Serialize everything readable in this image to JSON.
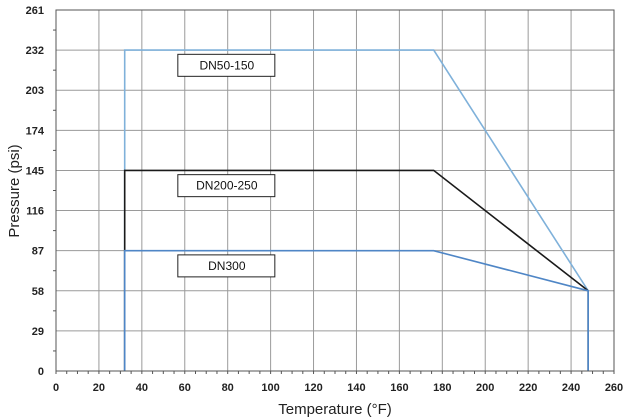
{
  "chart_data": {
    "type": "line",
    "xlabel": "Temperature (°F)",
    "ylabel": "Pressure (psi)",
    "xlim": [
      0,
      260
    ],
    "ylim": [
      0,
      261
    ],
    "x_ticks": [
      0,
      20,
      40,
      60,
      80,
      100,
      120,
      140,
      160,
      180,
      200,
      220,
      240,
      260
    ],
    "y_ticks": [
      0,
      29,
      58,
      87,
      116,
      145,
      174,
      203,
      232,
      261
    ],
    "grid": true,
    "series": [
      {
        "name": "DN50-150",
        "color": "#7fb1da",
        "points": [
          [
            32,
            0
          ],
          [
            32,
            232
          ],
          [
            176,
            232
          ],
          [
            248,
            58
          ],
          [
            248,
            0
          ]
        ]
      },
      {
        "name": "DN200-250",
        "color": "#1a1a1a",
        "points": [
          [
            32,
            0
          ],
          [
            32,
            145
          ],
          [
            176,
            145
          ],
          [
            248,
            58
          ],
          [
            248,
            0
          ]
        ]
      },
      {
        "name": "DN300",
        "color": "#4f86c6",
        "points": [
          [
            32,
            0
          ],
          [
            32,
            87
          ],
          [
            176,
            87
          ],
          [
            248,
            58
          ],
          [
            248,
            0
          ]
        ]
      }
    ],
    "labels": [
      {
        "text": "DN50-150",
        "x": 57,
        "y": 221
      },
      {
        "text": "DN200-250",
        "x": 57,
        "y": 134
      },
      {
        "text": "DN300",
        "x": 57,
        "y": 76
      }
    ]
  }
}
